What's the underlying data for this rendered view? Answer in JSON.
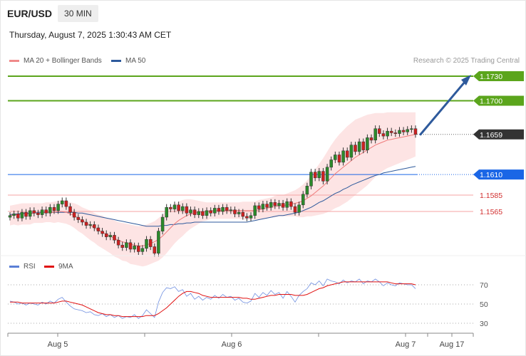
{
  "header": {
    "symbol": "EUR/USD",
    "timeframe": "30 MIN",
    "datetime": "Thursday, August 7, 2025 1:30:43 AM CET"
  },
  "legend": {
    "main": [
      {
        "name": "MA 20 + Bollinger Bands",
        "color": "#f08a8a"
      },
      {
        "name": "MA 50",
        "color": "#2e5a9c"
      }
    ],
    "rsi": [
      {
        "name": "RSI",
        "color": "#5b7fd6"
      },
      {
        "name": "9MA",
        "color": "#e01010"
      }
    ]
  },
  "credit": "Research © 2025 Trading Central",
  "chart_data": {
    "type": "candlestick",
    "y_range": [
      1.1505,
      1.176
    ],
    "x_labels": [
      "Aug 5",
      "Aug 6",
      "Aug 7",
      "Aug 17"
    ],
    "levels": [
      {
        "value": 1.173,
        "label": "1.1730",
        "kind": "resistance",
        "color": "#5ba51c"
      },
      {
        "value": 1.17,
        "label": "1.1700",
        "kind": "resistance",
        "color": "#5ba51c"
      },
      {
        "value": 1.1659,
        "label": "1.1659",
        "kind": "last-price",
        "color": "#333333"
      },
      {
        "value": 1.161,
        "label": "1.1610",
        "kind": "pivot",
        "color": "#1a66e6"
      },
      {
        "value": 1.1585,
        "label": "1.1585",
        "kind": "support",
        "color": "#d23030"
      },
      {
        "value": 1.1565,
        "label": "1.1565",
        "kind": "support",
        "color": "#d23030"
      }
    ],
    "arrow": {
      "from": 1.1659,
      "to": 1.173,
      "direction": "up"
    },
    "closes": [
      1.156,
      1.1562,
      1.1557,
      1.1564,
      1.1559,
      1.1566,
      1.1563,
      1.1561,
      1.1567,
      1.1563,
      1.157,
      1.1566,
      1.1574,
      1.1578,
      1.1571,
      1.1564,
      1.1558,
      1.1555,
      1.1552,
      1.1548,
      1.1549,
      1.1545,
      1.1541,
      1.1538,
      1.1534,
      1.1536,
      1.153,
      1.1524,
      1.1521,
      1.1527,
      1.1519,
      1.1523,
      1.1516,
      1.152,
      1.1531,
      1.1522,
      1.1514,
      1.1541,
      1.1558,
      1.157,
      1.1568,
      1.1573,
      1.1566,
      1.1571,
      1.1563,
      1.1567,
      1.1561,
      1.1565,
      1.156,
      1.1566,
      1.1563,
      1.1569,
      1.1565,
      1.157,
      1.1566,
      1.1567,
      1.1562,
      1.1564,
      1.1559,
      1.1557,
      1.156,
      1.1572,
      1.1568,
      1.1574,
      1.157,
      1.1576,
      1.1572,
      1.1575,
      1.157,
      1.1577,
      1.1571,
      1.1564,
      1.1573,
      1.1586,
      1.1596,
      1.1613,
      1.1606,
      1.1614,
      1.1602,
      1.1619,
      1.1628,
      1.1634,
      1.1625,
      1.1639,
      1.1631,
      1.1646,
      1.1638,
      1.165,
      1.164,
      1.1655,
      1.1652,
      1.1666,
      1.166,
      1.1657,
      1.1663,
      1.1661,
      1.166,
      1.1664,
      1.1662,
      1.1665,
      1.1666,
      1.1659
    ],
    "ma20": [
      1.156,
      1.1561,
      1.1561,
      1.1562,
      1.1562,
      1.1562,
      1.1563,
      1.1563,
      1.1563,
      1.1564,
      1.1564,
      1.1564,
      1.1565,
      1.1565,
      1.1564,
      1.1562,
      1.156,
      1.1557,
      1.1554,
      1.1551,
      1.1548,
      1.1545,
      1.1542,
      1.154,
      1.1537,
      1.1535,
      1.1532,
      1.153,
      1.1528,
      1.1527,
      1.1525,
      1.1524,
      1.1523,
      1.1523,
      1.1524,
      1.1526,
      1.1528,
      1.1531,
      1.1535,
      1.154,
      1.1545,
      1.155,
      1.1554,
      1.1557,
      1.156,
      1.1562,
      1.1563,
      1.1564,
      1.1565,
      1.1565,
      1.1566,
      1.1566,
      1.1566,
      1.1566,
      1.1566,
      1.1566,
      1.1566,
      1.1566,
      1.1566,
      1.1566,
      1.1566,
      1.1566,
      1.1567,
      1.1568,
      1.1569,
      1.157,
      1.1571,
      1.1572,
      1.1572,
      1.1573,
      1.1574,
      1.1575,
      1.1576,
      1.1578,
      1.1581,
      1.1584,
      1.1588,
      1.1592,
      1.1596,
      1.1601,
      1.1606,
      1.1611,
      1.1615,
      1.1619,
      1.1623,
      1.1627,
      1.1631,
      1.1634,
      1.1637,
      1.164,
      1.1643,
      1.1646,
      1.1648,
      1.165,
      1.1652,
      1.1653,
      1.1654,
      1.1655,
      1.1656,
      1.1657,
      1.1658,
      1.1659
    ],
    "ma50": [
      1.1561,
      1.1562,
      1.1562,
      1.1563,
      1.1563,
      1.1563,
      1.1563,
      1.1564,
      1.1564,
      1.1564,
      1.1564,
      1.1564,
      1.1564,
      1.1564,
      1.1564,
      1.1564,
      1.1564,
      1.1563,
      1.1563,
      1.1562,
      1.1561,
      1.156,
      1.1559,
      1.1558,
      1.1557,
      1.1556,
      1.1555,
      1.1554,
      1.1553,
      1.1552,
      1.1551,
      1.155,
      1.1549,
      1.1548,
      1.1547,
      1.1547,
      1.1547,
      1.1547,
      1.1548,
      1.1548,
      1.1549,
      1.1549,
      1.155,
      1.155,
      1.1551,
      1.1551,
      1.1552,
      1.1552,
      1.1552,
      1.1552,
      1.1552,
      1.1552,
      1.1552,
      1.1552,
      1.1552,
      1.1552,
      1.1552,
      1.1552,
      1.1552,
      1.1552,
      1.1553,
      1.1554,
      1.1555,
      1.1556,
      1.1557,
      1.1558,
      1.1559,
      1.156,
      1.156,
      1.1561,
      1.1562,
      1.1563,
      1.1564,
      1.1566,
      1.1568,
      1.157,
      1.1573,
      1.1576,
      1.1578,
      1.1581,
      1.1584,
      1.1587,
      1.1589,
      1.1592,
      1.1594,
      1.1597,
      1.1599,
      1.1601,
      1.1603,
      1.1605,
      1.1607,
      1.1609,
      1.161,
      1.1612,
      1.1613,
      1.1614,
      1.1615,
      1.1616,
      1.1617,
      1.1618,
      1.1619,
      1.162
    ],
    "bb_width": [
      0.0012,
      0.0012,
      0.0013,
      0.0013,
      0.0013,
      0.0013,
      0.0012,
      0.0012,
      0.0012,
      0.0012,
      0.0012,
      0.0013,
      0.0013,
      0.0014,
      0.0014,
      0.0014,
      0.0015,
      0.0016,
      0.0016,
      0.0017,
      0.0018,
      0.0018,
      0.0019,
      0.002,
      0.002,
      0.0021,
      0.0022,
      0.0022,
      0.0023,
      0.0023,
      0.0024,
      0.0024,
      0.0024,
      0.0025,
      0.0025,
      0.0025,
      0.0025,
      0.0026,
      0.0026,
      0.0026,
      0.0025,
      0.0024,
      0.0023,
      0.0022,
      0.002,
      0.0018,
      0.0016,
      0.0014,
      0.0012,
      0.0011,
      0.001,
      0.001,
      0.001,
      0.001,
      0.001,
      0.001,
      0.001,
      0.001,
      0.0011,
      0.0011,
      0.0011,
      0.0011,
      0.0012,
      0.0012,
      0.0012,
      0.0012,
      0.0013,
      0.0013,
      0.0013,
      0.0014,
      0.0015,
      0.0016,
      0.0018,
      0.002,
      0.0022,
      0.0025,
      0.0028,
      0.0031,
      0.0034,
      0.0037,
      0.004,
      0.0042,
      0.0044,
      0.0045,
      0.0046,
      0.0046,
      0.0046,
      0.0045,
      0.0044,
      0.0043,
      0.0041,
      0.0039,
      0.0037,
      0.0035,
      0.0034,
      0.0033,
      0.0032,
      0.0031,
      0.003,
      0.0029,
      0.0028,
      0.0027
    ],
    "rsi": {
      "ticks": [
        70,
        50,
        30
      ],
      "range": [
        20,
        85
      ],
      "rsi": [
        53,
        52,
        50,
        51,
        49,
        51,
        50,
        49,
        52,
        50,
        53,
        51,
        55,
        57,
        52,
        48,
        45,
        44,
        43,
        41,
        42,
        39,
        38,
        40,
        37,
        39,
        36,
        38,
        35,
        37,
        36,
        39,
        35,
        38,
        44,
        40,
        36,
        52,
        62,
        67,
        66,
        68,
        63,
        65,
        58,
        61,
        55,
        58,
        54,
        57,
        55,
        59,
        56,
        60,
        57,
        58,
        54,
        56,
        52,
        51,
        53,
        61,
        57,
        62,
        59,
        64,
        60,
        62,
        56,
        63,
        58,
        52,
        59,
        63,
        66,
        72,
        70,
        74,
        69,
        76,
        74,
        73,
        71,
        75,
        72,
        74,
        73,
        76,
        71,
        74,
        73,
        76,
        73,
        69,
        72,
        70,
        69,
        72,
        71,
        70,
        70,
        66
      ],
      "ma9": [
        52,
        52,
        52,
        51,
        51,
        51,
        51,
        51,
        51,
        51,
        51,
        51,
        52,
        53,
        53,
        52,
        51,
        50,
        49,
        47,
        45,
        43,
        41,
        40,
        39,
        39,
        38,
        38,
        37,
        37,
        37,
        37,
        37,
        37,
        38,
        38,
        38,
        40,
        43,
        46,
        50,
        54,
        58,
        61,
        63,
        63,
        62,
        61,
        59,
        58,
        57,
        57,
        57,
        57,
        57,
        57,
        57,
        57,
        56,
        56,
        55,
        55,
        56,
        57,
        58,
        59,
        59,
        60,
        60,
        60,
        60,
        59,
        59,
        59,
        60,
        62,
        64,
        66,
        67,
        69,
        70,
        71,
        72,
        73,
        73,
        73,
        73,
        73,
        73,
        73,
        73,
        73,
        73,
        73,
        73,
        72,
        71,
        71,
        71,
        71,
        71,
        70
      ]
    }
  }
}
